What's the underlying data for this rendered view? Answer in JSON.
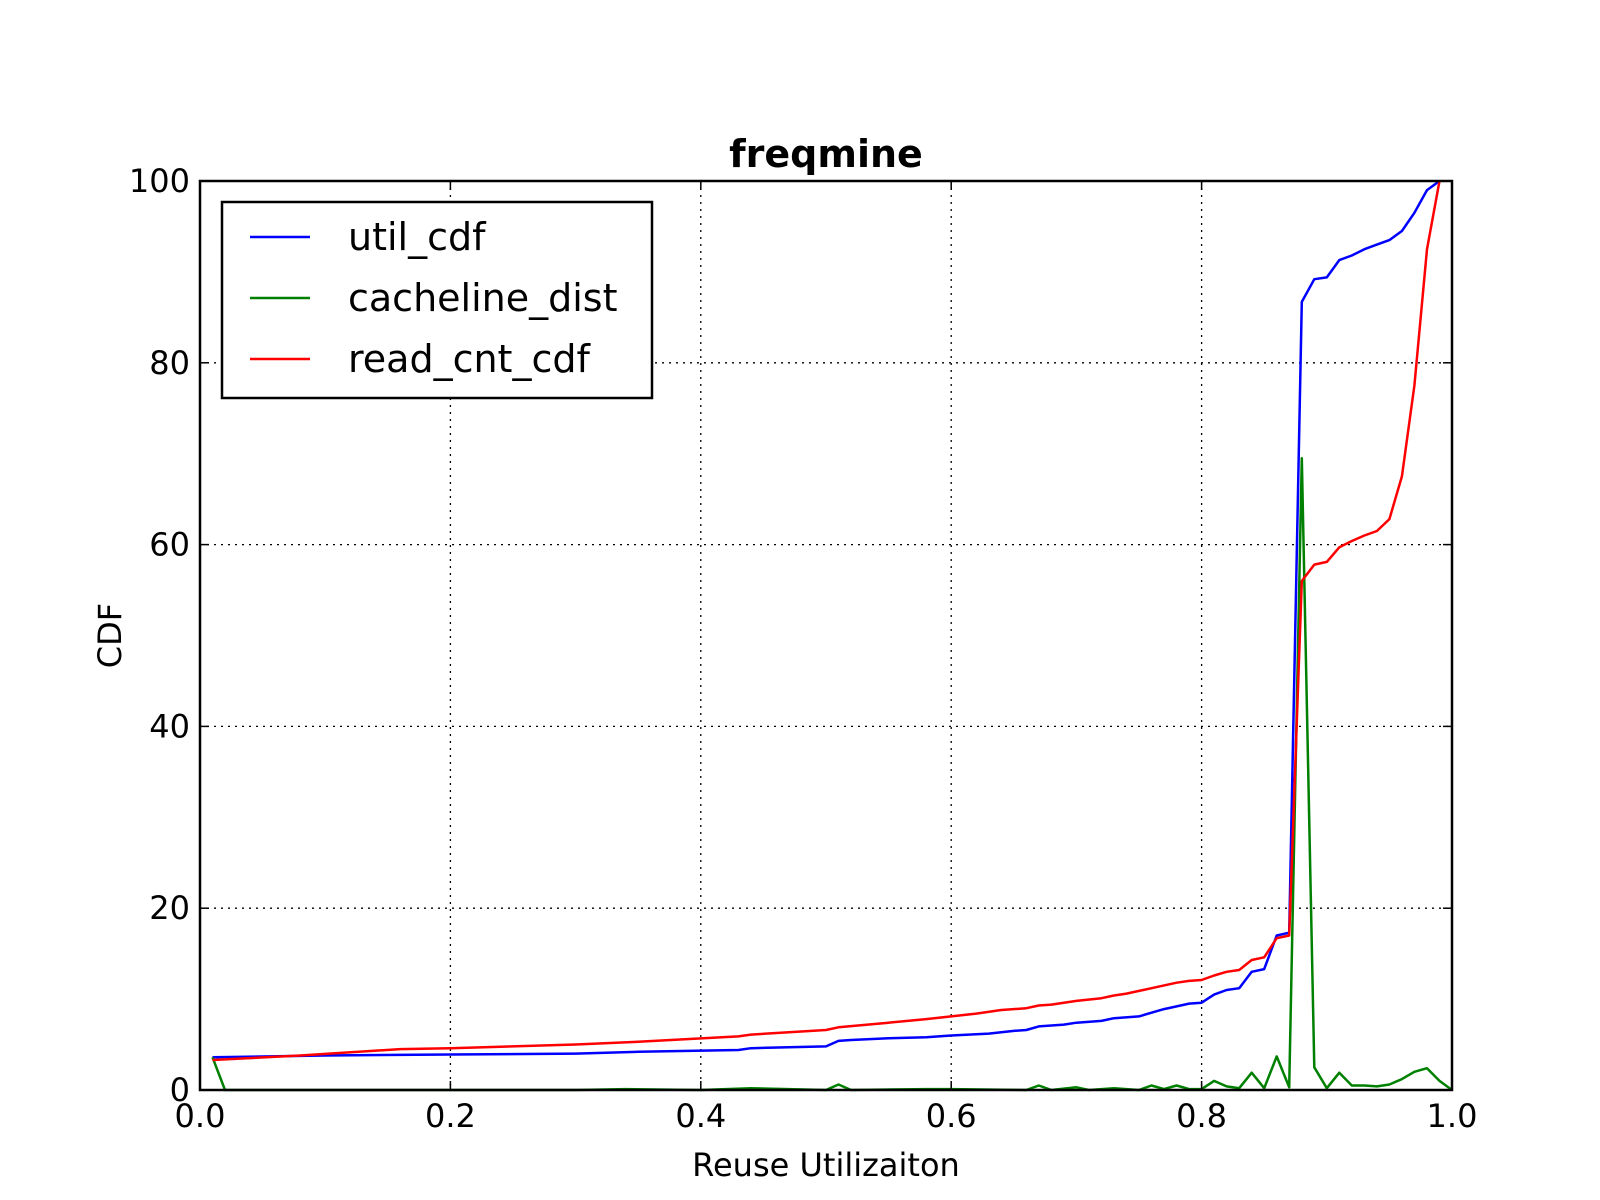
{
  "chart_data": {
    "type": "line",
    "title": "freqmine",
    "xlabel": "Reuse Utilizaiton",
    "ylabel": "CDF",
    "xlim": [
      0.0,
      1.0
    ],
    "ylim": [
      0,
      100
    ],
    "xticks": [
      0.0,
      0.2,
      0.4,
      0.6,
      0.8,
      1.0
    ],
    "xtick_labels": [
      "0.0",
      "0.2",
      "0.4",
      "0.6",
      "0.8",
      "1.0"
    ],
    "yticks": [
      0,
      20,
      40,
      60,
      80,
      100
    ],
    "ytick_labels": [
      "0",
      "20",
      "40",
      "60",
      "80",
      "100"
    ],
    "grid": true,
    "legend_position": "top-left",
    "series": [
      {
        "name": "util_cdf",
        "color": "#0000ff",
        "x": [
          0.01,
          0.1,
          0.2,
          0.3,
          0.35,
          0.43,
          0.44,
          0.5,
          0.51,
          0.52,
          0.55,
          0.58,
          0.6,
          0.63,
          0.65,
          0.66,
          0.67,
          0.69,
          0.7,
          0.72,
          0.73,
          0.75,
          0.76,
          0.77,
          0.78,
          0.79,
          0.8,
          0.81,
          0.82,
          0.83,
          0.84,
          0.85,
          0.86,
          0.87,
          0.88,
          0.89,
          0.9,
          0.91,
          0.92,
          0.93,
          0.94,
          0.95,
          0.96,
          0.97,
          0.98,
          0.99
        ],
        "y": [
          3.6,
          3.8,
          3.9,
          4.0,
          4.2,
          4.4,
          4.6,
          4.8,
          5.4,
          5.5,
          5.7,
          5.8,
          6.0,
          6.2,
          6.5,
          6.6,
          7.0,
          7.2,
          7.4,
          7.6,
          7.9,
          8.1,
          8.5,
          8.9,
          9.2,
          9.5,
          9.6,
          10.5,
          11.0,
          11.2,
          13.0,
          13.3,
          17.0,
          17.3,
          86.7,
          89.2,
          89.4,
          91.3,
          91.8,
          92.5,
          93.0,
          93.5,
          94.5,
          96.5,
          99.0,
          100
        ]
      },
      {
        "name": "cacheline_dist",
        "color": "#008000",
        "x": [
          0.01,
          0.02,
          0.1,
          0.2,
          0.3,
          0.34,
          0.4,
          0.44,
          0.5,
          0.51,
          0.52,
          0.58,
          0.6,
          0.66,
          0.67,
          0.68,
          0.7,
          0.71,
          0.73,
          0.75,
          0.76,
          0.77,
          0.78,
          0.79,
          0.8,
          0.81,
          0.82,
          0.83,
          0.84,
          0.85,
          0.86,
          0.87,
          0.88,
          0.89,
          0.9,
          0.91,
          0.92,
          0.93,
          0.94,
          0.95,
          0.96,
          0.97,
          0.98,
          0.99,
          1.0
        ],
        "y": [
          3.6,
          0.0,
          0.0,
          0.0,
          0.0,
          0.1,
          0.0,
          0.2,
          0.0,
          0.6,
          0.0,
          0.1,
          0.1,
          0.0,
          0.5,
          0.0,
          0.3,
          0.0,
          0.2,
          0.0,
          0.5,
          0.1,
          0.5,
          0.1,
          0.1,
          1.0,
          0.4,
          0.2,
          1.9,
          0.2,
          3.7,
          0.3,
          69.5,
          2.5,
          0.2,
          1.9,
          0.5,
          0.5,
          0.4,
          0.6,
          1.2,
          2.0,
          2.4,
          1.0,
          0.0
        ]
      },
      {
        "name": "read_cnt_cdf",
        "color": "#ff0000",
        "x": [
          0.01,
          0.08,
          0.16,
          0.2,
          0.3,
          0.35,
          0.43,
          0.44,
          0.5,
          0.51,
          0.55,
          0.58,
          0.6,
          0.62,
          0.64,
          0.66,
          0.67,
          0.68,
          0.7,
          0.72,
          0.73,
          0.74,
          0.76,
          0.78,
          0.79,
          0.8,
          0.81,
          0.82,
          0.83,
          0.84,
          0.85,
          0.86,
          0.87,
          0.88,
          0.89,
          0.9,
          0.91,
          0.92,
          0.93,
          0.94,
          0.95,
          0.96,
          0.97,
          0.98,
          0.99
        ],
        "y": [
          3.3,
          3.8,
          4.5,
          4.6,
          5.0,
          5.3,
          5.9,
          6.1,
          6.6,
          6.9,
          7.4,
          7.8,
          8.1,
          8.4,
          8.8,
          9.0,
          9.3,
          9.4,
          9.8,
          10.1,
          10.4,
          10.6,
          11.2,
          11.8,
          12.0,
          12.1,
          12.6,
          13.0,
          13.2,
          14.3,
          14.6,
          16.7,
          17.0,
          56.0,
          57.8,
          58.1,
          59.7,
          60.4,
          61.0,
          61.5,
          62.8,
          67.5,
          77.5,
          92.5,
          100
        ]
      }
    ]
  }
}
